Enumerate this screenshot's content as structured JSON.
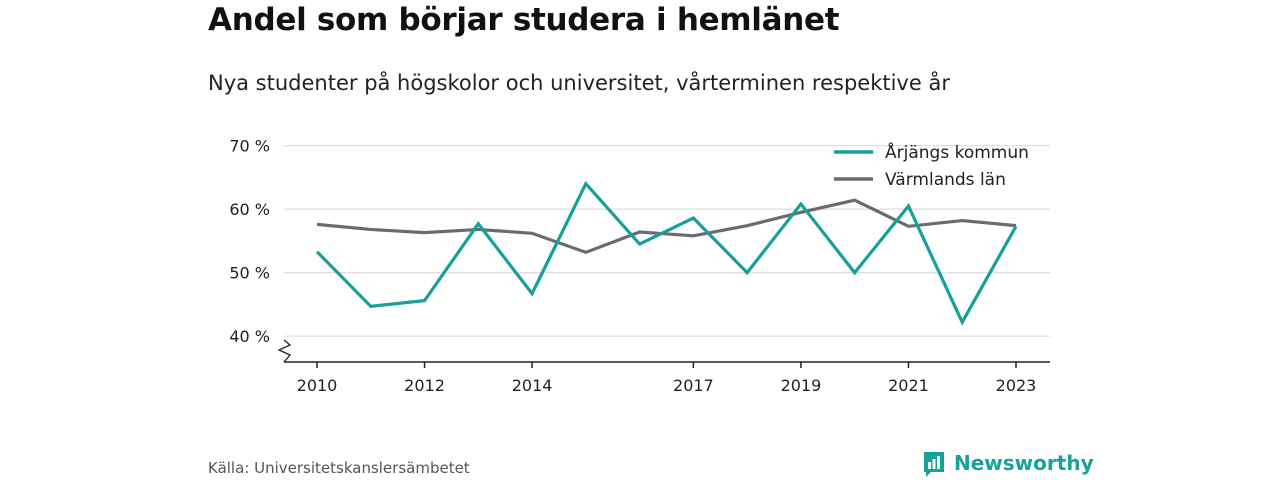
{
  "header": {
    "title": "Andel som börjar studera i hemlänet",
    "subtitle": "Nya studenter på högskolor och universitet, vårterminen respektive år"
  },
  "footer": {
    "source": "Källa: Universitetskanslersämbetet",
    "brand": "Newsworthy"
  },
  "colors": {
    "arjang": "#16a099",
    "varmland": "#6b6a70",
    "grid": "#dedede",
    "brand": "#17a39a"
  },
  "chart_data": {
    "type": "line",
    "x": [
      2010,
      2011,
      2012,
      2013,
      2014,
      2015,
      2016,
      2017,
      2018,
      2019,
      2020,
      2021,
      2022,
      2023
    ],
    "x_tick_labels": [
      "2010",
      "2012",
      "2014",
      "2017",
      "2019",
      "2021",
      "2023"
    ],
    "y_tick_labels": [
      "40 %",
      "50 %",
      "60 %",
      "70 %"
    ],
    "y_ticks": [
      40,
      50,
      60,
      70
    ],
    "ylim": [
      36,
      70
    ],
    "y_axis_break": true,
    "grid": true,
    "legend_position": "top-right",
    "series": [
      {
        "name": "Årjängs kommun",
        "values": [
          53.3,
          44.7,
          45.6,
          57.7,
          46.7,
          64.0,
          54.5,
          58.6,
          50.0,
          60.8,
          50.0,
          60.5,
          42.2,
          57.3
        ]
      },
      {
        "name": "Värmlands län",
        "values": [
          57.6,
          56.8,
          56.3,
          56.8,
          56.2,
          53.2,
          56.4,
          55.8,
          57.4,
          59.5,
          61.4,
          57.3,
          58.2,
          57.4
        ]
      }
    ]
  }
}
